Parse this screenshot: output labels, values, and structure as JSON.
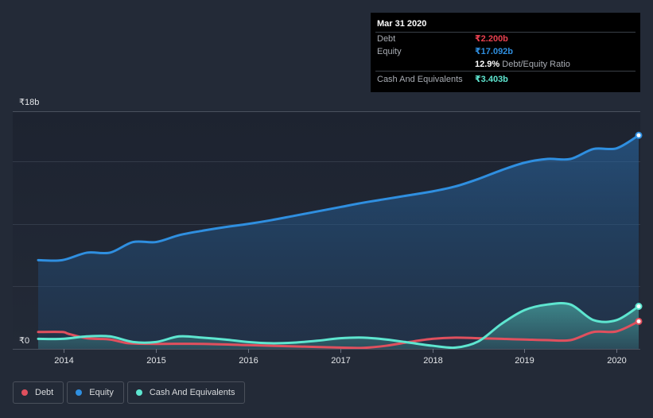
{
  "chart_data": {
    "type": "area",
    "title": "",
    "xlabel": "",
    "ylabel": "",
    "y_tick_labels": [
      {
        "value": 18,
        "label": "₹18b"
      },
      {
        "value": 0,
        "label": "₹0"
      }
    ],
    "ylim": [
      0,
      18
    ],
    "xlim": [
      2013.72,
      2020.24
    ],
    "x_ticks": [
      {
        "value": 2014,
        "label": "2014"
      },
      {
        "value": 2015,
        "label": "2015"
      },
      {
        "value": 2016,
        "label": "2016"
      },
      {
        "value": 2017,
        "label": "2017"
      },
      {
        "value": 2018,
        "label": "2018"
      },
      {
        "value": 2019,
        "label": "2019"
      },
      {
        "value": 2020,
        "label": "2020"
      }
    ],
    "gridlines": [
      15,
      10,
      5
    ],
    "series": [
      {
        "name": "Debt",
        "color": "#e0505e",
        "fill": false,
        "points": [
          [
            2013.72,
            1.35
          ],
          [
            2013.98,
            1.35
          ],
          [
            2014.05,
            1.2
          ],
          [
            2014.25,
            0.85
          ],
          [
            2014.5,
            0.75
          ],
          [
            2014.7,
            0.45
          ],
          [
            2015.0,
            0.4
          ],
          [
            2015.5,
            0.4
          ],
          [
            2016.0,
            0.3
          ],
          [
            2016.5,
            0.2
          ],
          [
            2017.0,
            0.1
          ],
          [
            2017.25,
            0.08
          ],
          [
            2017.5,
            0.25
          ],
          [
            2017.75,
            0.55
          ],
          [
            2018.0,
            0.8
          ],
          [
            2018.25,
            0.9
          ],
          [
            2018.5,
            0.85
          ],
          [
            2018.75,
            0.8
          ],
          [
            2019.0,
            0.75
          ],
          [
            2019.25,
            0.7
          ],
          [
            2019.5,
            0.7
          ],
          [
            2019.75,
            1.35
          ],
          [
            2020.0,
            1.4
          ],
          [
            2020.24,
            2.2
          ]
        ]
      },
      {
        "name": "Equity",
        "color": "#2f8fe0",
        "fill": true,
        "points": [
          [
            2013.72,
            7.1
          ],
          [
            2013.98,
            7.1
          ],
          [
            2014.25,
            7.7
          ],
          [
            2014.5,
            7.7
          ],
          [
            2014.75,
            8.55
          ],
          [
            2015.0,
            8.55
          ],
          [
            2015.25,
            9.1
          ],
          [
            2015.5,
            9.45
          ],
          [
            2015.75,
            9.75
          ],
          [
            2016.0,
            10.0
          ],
          [
            2016.25,
            10.3
          ],
          [
            2016.5,
            10.65
          ],
          [
            2016.75,
            11.0
          ],
          [
            2017.0,
            11.35
          ],
          [
            2017.25,
            11.7
          ],
          [
            2017.5,
            12.0
          ],
          [
            2017.75,
            12.3
          ],
          [
            2018.0,
            12.6
          ],
          [
            2018.25,
            13.0
          ],
          [
            2018.5,
            13.6
          ],
          [
            2018.75,
            14.3
          ],
          [
            2019.0,
            14.9
          ],
          [
            2019.25,
            15.2
          ],
          [
            2019.5,
            15.2
          ],
          [
            2019.75,
            16.0
          ],
          [
            2020.0,
            16.05
          ],
          [
            2020.24,
            17.09
          ]
        ]
      },
      {
        "name": "Cash And Equivalents",
        "color": "#5ee6d0",
        "fill": true,
        "points": [
          [
            2013.72,
            0.8
          ],
          [
            2013.98,
            0.8
          ],
          [
            2014.25,
            1.0
          ],
          [
            2014.5,
            1.0
          ],
          [
            2014.75,
            0.55
          ],
          [
            2015.0,
            0.55
          ],
          [
            2015.25,
            1.0
          ],
          [
            2015.5,
            0.9
          ],
          [
            2015.75,
            0.75
          ],
          [
            2016.0,
            0.55
          ],
          [
            2016.25,
            0.45
          ],
          [
            2016.5,
            0.5
          ],
          [
            2016.75,
            0.65
          ],
          [
            2017.0,
            0.85
          ],
          [
            2017.25,
            0.9
          ],
          [
            2017.5,
            0.75
          ],
          [
            2017.75,
            0.5
          ],
          [
            2018.0,
            0.25
          ],
          [
            2018.25,
            0.1
          ],
          [
            2018.5,
            0.6
          ],
          [
            2018.75,
            2.0
          ],
          [
            2019.0,
            3.1
          ],
          [
            2019.25,
            3.55
          ],
          [
            2019.5,
            3.55
          ],
          [
            2019.75,
            2.3
          ],
          [
            2020.0,
            2.3
          ],
          [
            2020.24,
            3.403
          ]
        ]
      }
    ],
    "legend": {
      "position": "bottom-left",
      "items": [
        {
          "name": "Debt",
          "color": "#e0505e"
        },
        {
          "name": "Equity",
          "color": "#2f8fe0"
        },
        {
          "name": "Cash And Equivalents",
          "color": "#5ee6d0"
        }
      ]
    }
  },
  "tooltip": {
    "date": "Mar 31 2020",
    "debt_label": "Debt",
    "debt_value": "₹2.200b",
    "debt_color": "#e8404f",
    "equity_label": "Equity",
    "equity_value": "₹17.092b",
    "equity_color": "#2f8fe0",
    "ratio_value": "12.9%",
    "ratio_label": "Debt/Equity Ratio",
    "cash_label": "Cash And Equivalents",
    "cash_value": "₹3.403b",
    "cash_color": "#5ee6d0"
  }
}
